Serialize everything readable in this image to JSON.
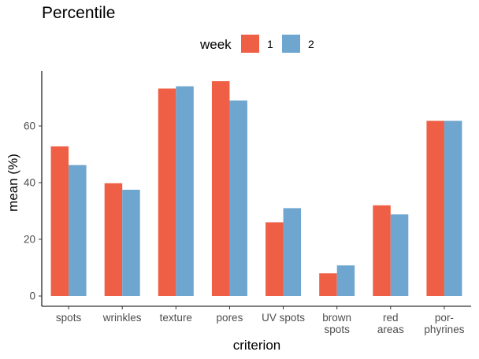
{
  "chart_data": {
    "type": "bar",
    "title": "Percentile",
    "xlabel": "criterion",
    "ylabel": "mean (%)",
    "legend_title": "week",
    "legend_position": "top",
    "ylim": [
      0,
      80
    ],
    "yticks": [
      0,
      20,
      40,
      60
    ],
    "grid": false,
    "categories": [
      "spots",
      "wrinkles",
      "texture",
      "pores",
      "UV spots",
      "brown spots",
      "red areas",
      "por-phyrines"
    ],
    "category_lines": [
      [
        "spots"
      ],
      [
        "wrinkles"
      ],
      [
        "texture"
      ],
      [
        "pores"
      ],
      [
        "UV spots"
      ],
      [
        "brown",
        "spots"
      ],
      [
        "red",
        "areas"
      ],
      [
        "por-",
        "phyrines"
      ]
    ],
    "series": [
      {
        "name": "1",
        "color": "#ef5f45",
        "values": [
          52.8,
          39.8,
          73.2,
          75.8,
          26,
          8,
          32,
          61.8
        ]
      },
      {
        "name": "2",
        "color": "#6ea6cf",
        "values": [
          46.2,
          37.5,
          74,
          69,
          31,
          10.8,
          28.8,
          61.8
        ]
      }
    ]
  }
}
